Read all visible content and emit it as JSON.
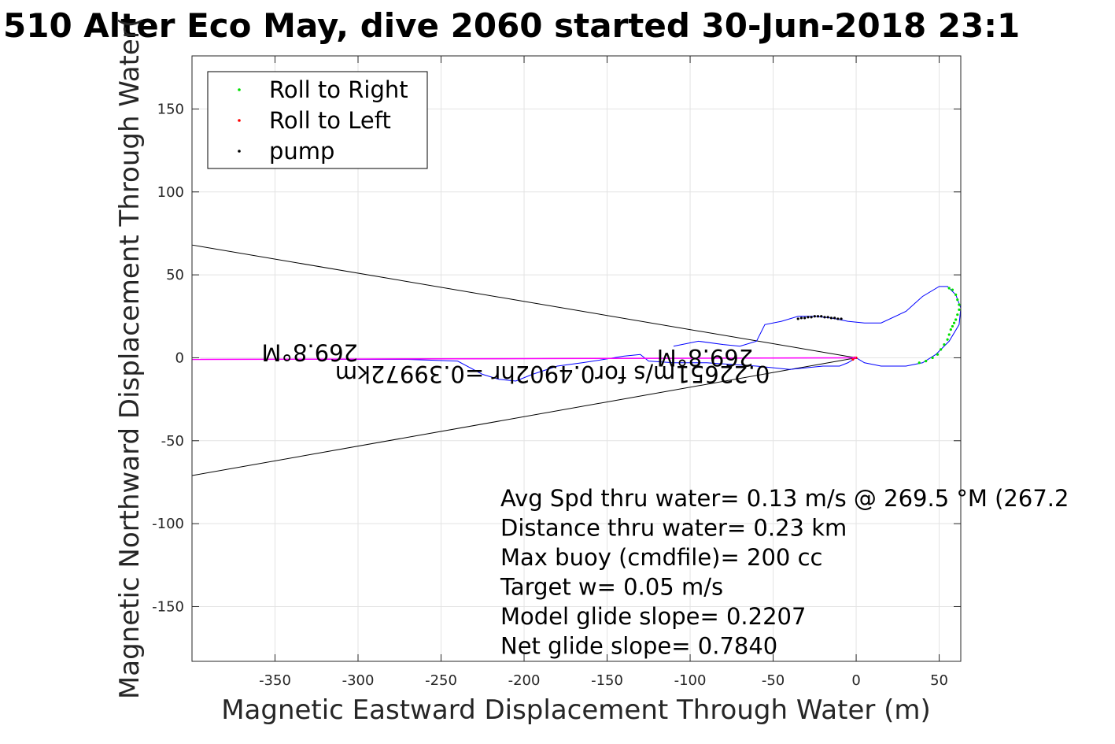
{
  "chart_data": {
    "type": "line",
    "title": "510 Alter Eco May, dive 2060 started 30-Jun-2018 23:1",
    "xlabel": "Magnetic Eastward Displacement Through Water (m)",
    "ylabel": "Magnetic Northward Displacement Through Water(",
    "xlim": [
      -400,
      63
    ],
    "ylim": [
      -183,
      182
    ],
    "xticks": [
      -350,
      -300,
      -250,
      -200,
      -150,
      -100,
      -50,
      0,
      50
    ],
    "yticks": [
      150,
      100,
      50,
      0,
      -50,
      -100,
      -150
    ],
    "grid": true,
    "legend_position": "top-left",
    "legend": [
      {
        "label": "Roll to Right",
        "color": "#00e000"
      },
      {
        "label": "Roll to Left",
        "color": "#ff0000"
      },
      {
        "label": "pump",
        "color": "#000000"
      }
    ],
    "series": [
      {
        "name": "track",
        "color": "#0000ff",
        "x": [
          0,
          -5,
          -10,
          -20,
          -40,
          -60,
          -90,
          -110,
          -125,
          -130,
          -140,
          -152,
          -165,
          -180,
          -195,
          -205,
          -215,
          -225,
          -240,
          -270,
          -300,
          -340,
          -380,
          -400
        ],
        "y": [
          0,
          -3,
          -5,
          -5,
          -7,
          -5,
          -3,
          -3,
          -2,
          2,
          1,
          -1,
          -3,
          -5,
          -10,
          -14,
          -13,
          -10,
          -2,
          -1,
          -1,
          -1,
          -1,
          -1
        ]
      },
      {
        "name": "track-loop",
        "color": "#0000ff",
        "x": [
          0,
          5,
          15,
          30,
          40,
          48,
          56,
          62,
          63,
          60,
          55,
          50,
          40,
          30,
          15,
          5,
          -5,
          -15,
          -25,
          -35,
          -45,
          -55,
          -60,
          -70,
          -80,
          -95,
          -110
        ],
        "y": [
          0,
          -3,
          -5,
          -5,
          -3,
          2,
          10,
          20,
          30,
          38,
          43,
          43,
          37,
          28,
          21,
          21,
          22,
          24,
          25,
          25,
          22,
          20,
          10,
          7,
          8,
          10,
          7
        ]
      },
      {
        "name": "Roll to Right",
        "color": "#00e000",
        "x": [
          38,
          42,
          46,
          49,
          51,
          53,
          55,
          56,
          57,
          58,
          59,
          60,
          61,
          62,
          62,
          61,
          60,
          58,
          56
        ],
        "y": [
          -3,
          -2,
          0,
          2,
          5,
          8,
          11,
          14,
          17,
          19,
          21,
          23,
          26,
          29,
          32,
          35,
          38,
          41,
          42
        ]
      },
      {
        "name": "Roll to Left",
        "color": "#ff0000",
        "x": [
          0,
          -1,
          -2
        ],
        "y": [
          0,
          0,
          -1
        ]
      },
      {
        "name": "pump",
        "color": "#000000",
        "x": [
          -35,
          -33,
          -31,
          -29,
          -27,
          -25,
          -23,
          -21,
          -19,
          -17,
          -15,
          -13,
          -11,
          -9
        ],
        "y": [
          23.5,
          24,
          24,
          24.5,
          24.5,
          25,
          25,
          25,
          24.5,
          24.5,
          24,
          24,
          23.5,
          23.5
        ]
      },
      {
        "name": "magenta-line",
        "color": "#ff00ff",
        "x": [
          0,
          -400
        ],
        "y": [
          0,
          -1
        ]
      }
    ],
    "reference_lines": [
      {
        "x": [
          0,
          -400
        ],
        "y": [
          0,
          68
        ]
      },
      {
        "x": [
          0,
          -400
        ],
        "y": [
          0,
          -71
        ]
      },
      {
        "x": [
          0,
          -400
        ],
        "y": [
          0,
          -1
        ]
      }
    ],
    "annotations_upside_down": [
      {
        "text": "269.8°M",
        "x": -62,
        "y": 5
      },
      {
        "text": "269.8°M",
        "x": -300,
        "y": 8
      },
      {
        "text": "0.22651m/s for0.4902hr =0.39972km",
        "x": -52,
        "y": -5
      }
    ],
    "stats_text": [
      "Avg Spd thru water=  0.13 m/s @ 269.5 °M (267.2",
      "Distance thru water=  0.23 km",
      "Max buoy (cmdfile)= 200 cc",
      "Target w= 0.05 m/s",
      "Model glide slope= 0.2207",
      "Net glide slope= 0.7840"
    ]
  }
}
